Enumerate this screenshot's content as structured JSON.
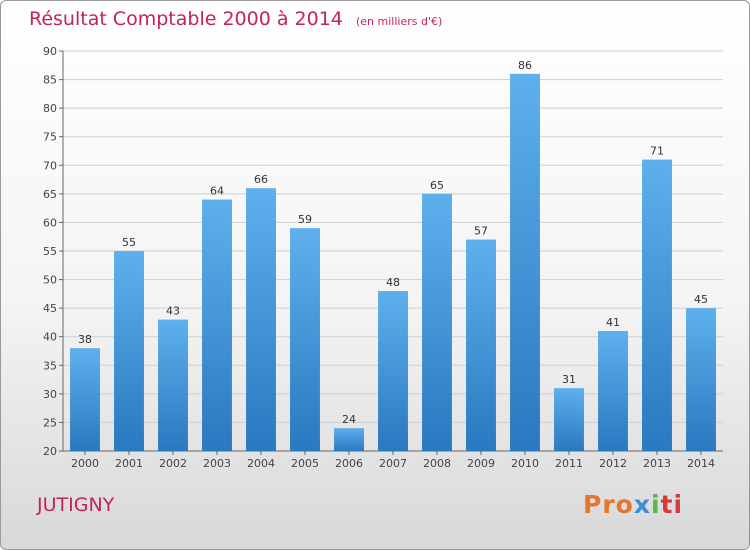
{
  "chart_data": {
    "type": "bar",
    "title": "Résultat Comptable 2000 à 2014",
    "subtitle": "(en milliers d'€)",
    "categories": [
      "2000",
      "2001",
      "2002",
      "2003",
      "2004",
      "2005",
      "2006",
      "2007",
      "2008",
      "2009",
      "2010",
      "2011",
      "2012",
      "2013",
      "2014"
    ],
    "values": [
      38,
      55,
      43,
      64,
      66,
      59,
      24,
      48,
      65,
      57,
      86,
      31,
      41,
      71,
      45
    ],
    "ylim": [
      20,
      90
    ],
    "yticks": [
      20,
      25,
      30,
      35,
      40,
      45,
      50,
      55,
      60,
      65,
      70,
      75,
      80,
      85,
      90
    ],
    "xlabel": "",
    "ylabel": "",
    "grid": true,
    "bar_color": "#3a8fd8"
  },
  "commune": "JUTIGNY",
  "logo": {
    "p1": "Pro",
    "p2": "x",
    "p3": "i",
    "p4": "ti"
  },
  "colors": {
    "accent": "#c1245a",
    "bar": "#3a8fd8"
  }
}
